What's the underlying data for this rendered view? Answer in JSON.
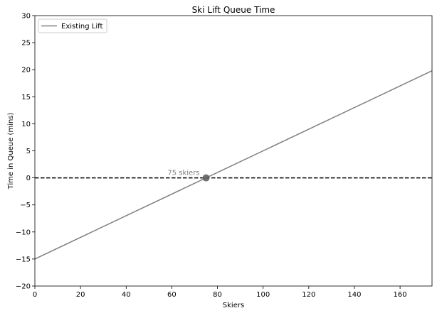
{
  "chart_data": {
    "type": "line",
    "title": "Ski Lift Queue Time",
    "xlabel": "Skiers",
    "ylabel": "Time in Queue (mins)",
    "xlim": [
      0,
      174
    ],
    "ylim": [
      -20,
      30
    ],
    "xticks": [
      0,
      20,
      40,
      60,
      80,
      100,
      120,
      140,
      160
    ],
    "yticks": [
      -20,
      -15,
      -10,
      -5,
      0,
      5,
      10,
      15,
      20,
      25,
      30
    ],
    "grid": false,
    "legend": {
      "placement": "top-left",
      "entries": [
        "Existing Lift"
      ]
    },
    "series": [
      {
        "name": "Existing Lift",
        "color": "#808080",
        "x": [
          0,
          174
        ],
        "y": [
          -15,
          19.8
        ]
      }
    ],
    "reference_line": {
      "y": 0,
      "style": "dashed",
      "color": "#000000"
    },
    "marker": {
      "x": 75,
      "y": 0,
      "color": "#606060"
    },
    "annotation": {
      "text": "75 skiers",
      "x": 75,
      "y": 0,
      "color": "#808080"
    }
  }
}
